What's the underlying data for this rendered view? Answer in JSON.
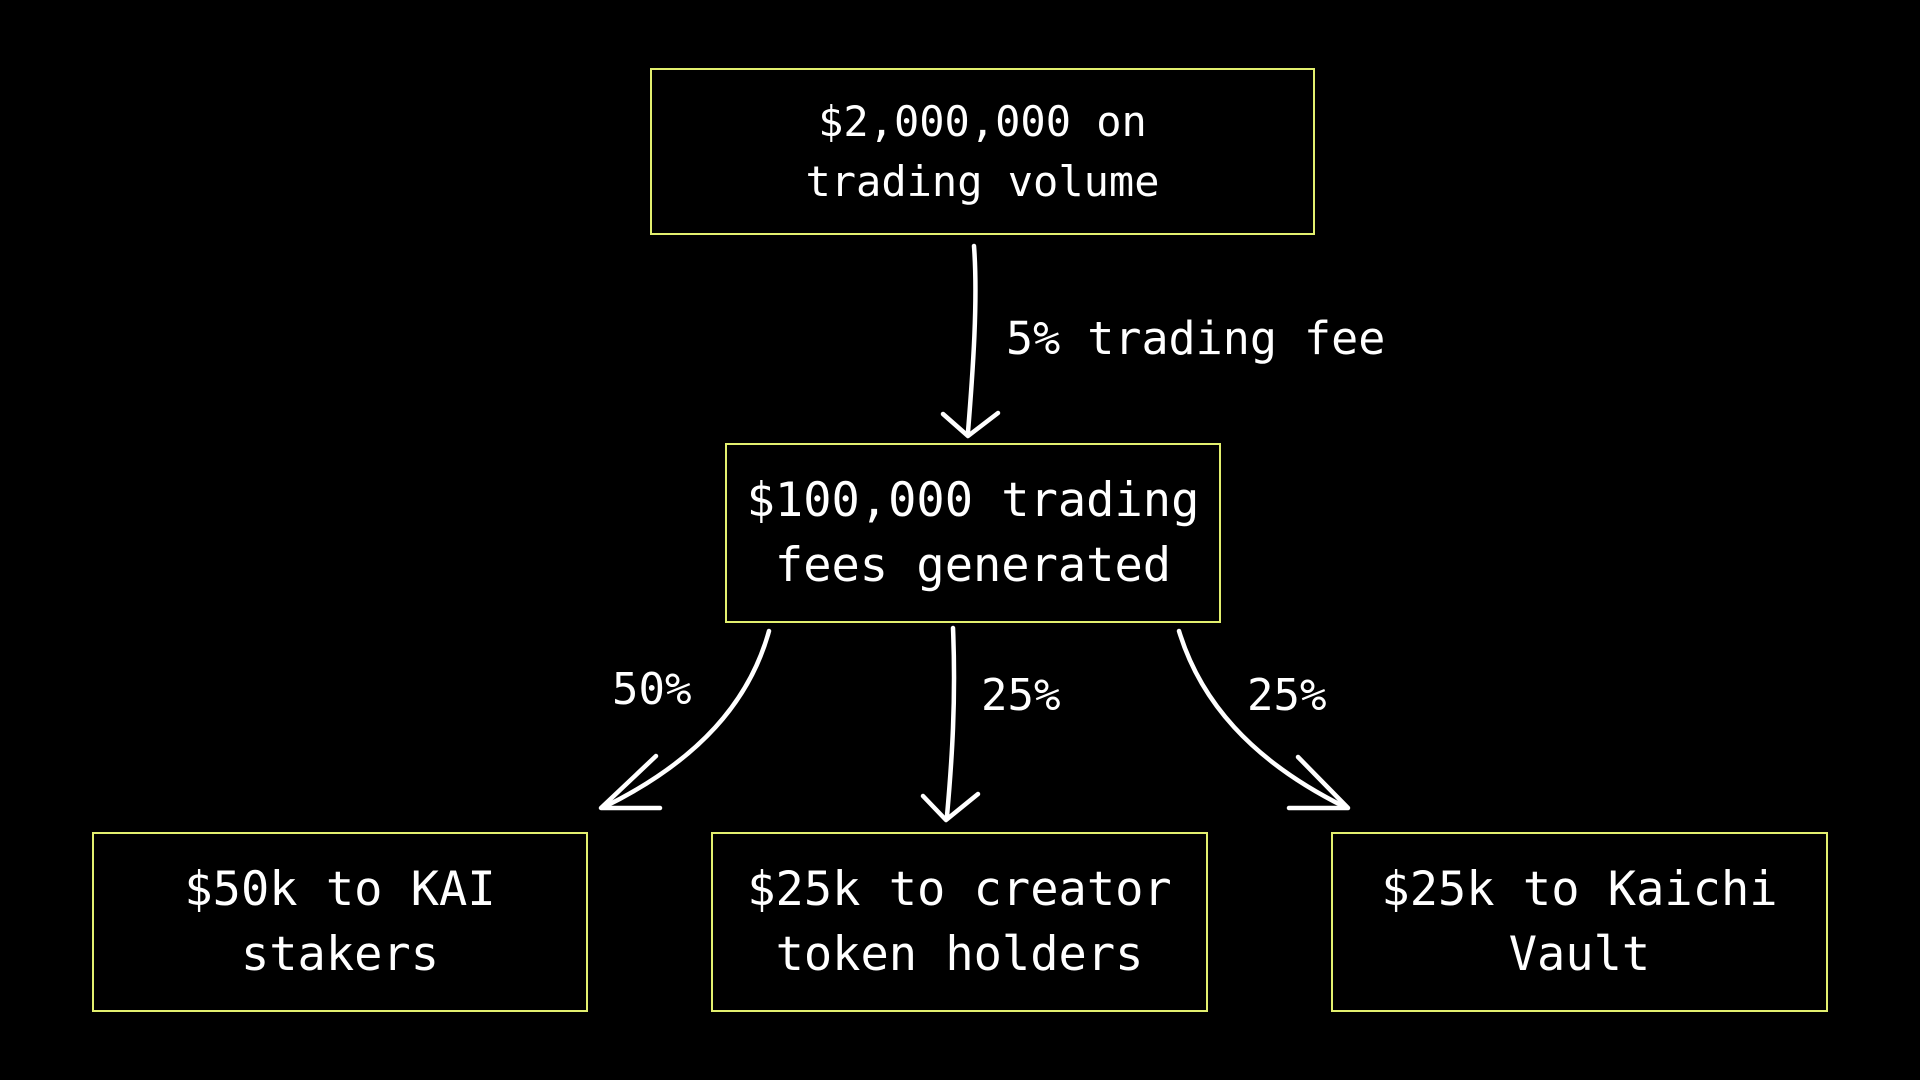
{
  "colors": {
    "background": "#000000",
    "box_border": "#e2ef6e",
    "text": "#ffffff",
    "arrow": "#ffffff"
  },
  "nodes": {
    "volume": {
      "lines": [
        "$2,000,000 on",
        "trading volume"
      ]
    },
    "fees": {
      "lines": [
        "$100,000 trading",
        "fees generated"
      ]
    },
    "kai_stakers": {
      "lines": [
        "$50k to KAI",
        "stakers"
      ]
    },
    "creator_holders": {
      "lines": [
        "$25k to creator",
        "token holders"
      ]
    },
    "kaichi_vault": {
      "lines": [
        "$25k to Kaichi",
        "Vault"
      ]
    }
  },
  "edges": {
    "fee_rate": {
      "label": "5% trading fee"
    },
    "to_stakers": {
      "label": "50%"
    },
    "to_creator": {
      "label": "25%"
    },
    "to_vault": {
      "label": "25%"
    }
  }
}
